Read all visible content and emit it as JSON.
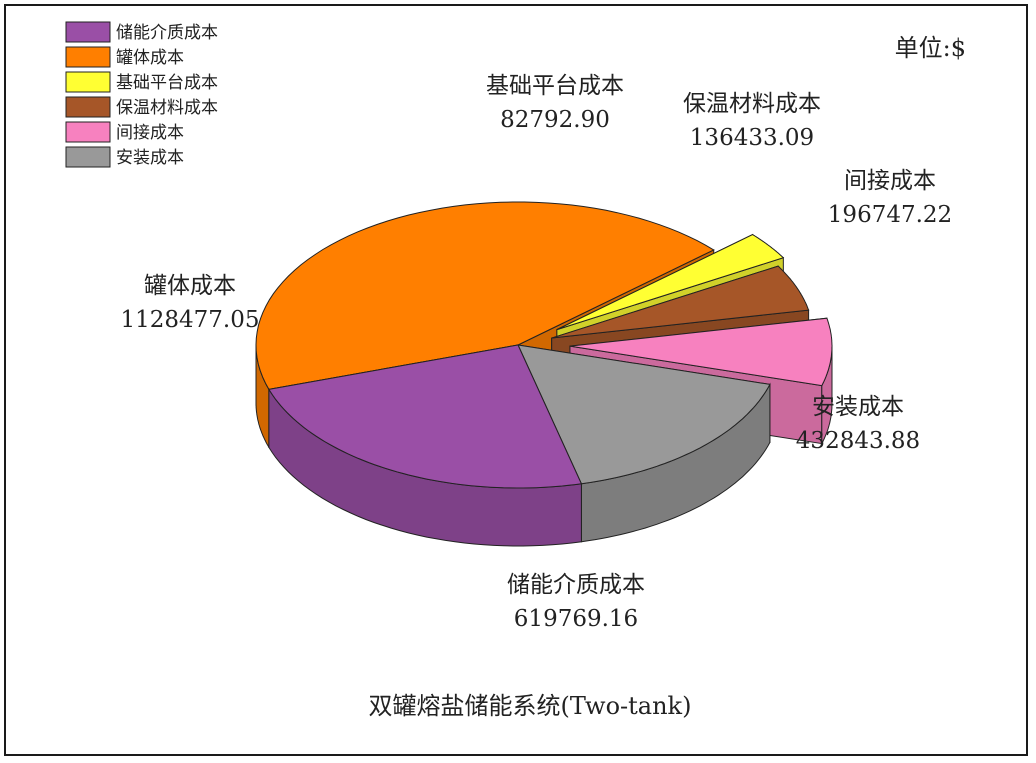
{
  "chart_data": {
    "type": "pie",
    "title": "双罐熔盐储能系统(Two-tank)",
    "unit_label": "单位:$",
    "legend_position": "top-left",
    "slices": [
      {
        "name": "储能介质成本",
        "value": 619769.16,
        "value_text": "619769.16",
        "color": "#9A4FA6"
      },
      {
        "name": "罐体成本",
        "value": 1128477.05,
        "value_text": "1128477.05",
        "color": "#FF7F00"
      },
      {
        "name": "基础平台成本",
        "value": 82792.9,
        "value_text": "82792.90",
        "color": "#FFFF33"
      },
      {
        "name": "保温材料成本",
        "value": 136433.09,
        "value_text": "136433.09",
        "color": "#A65628"
      },
      {
        "name": "间接成本",
        "value": 196747.22,
        "value_text": "196747.22",
        "color": "#F781BF"
      },
      {
        "name": "安装成本",
        "value": 432843.88,
        "value_text": "432843.88",
        "color": "#999999"
      }
    ]
  }
}
